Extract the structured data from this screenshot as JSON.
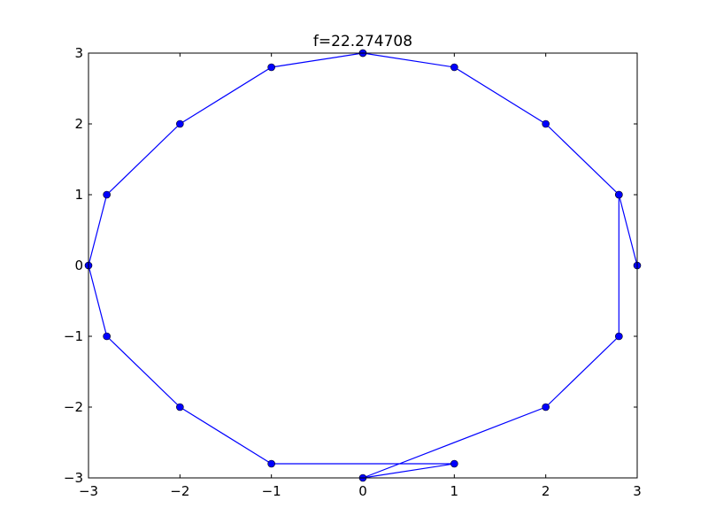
{
  "chart_data": {
    "type": "line",
    "title": "f=22.274708",
    "xlabel": "",
    "ylabel": "",
    "xlim": [
      -3,
      3
    ],
    "ylim": [
      -3,
      3
    ],
    "xticks": [
      -3,
      -2,
      -1,
      0,
      1,
      2,
      3
    ],
    "yticks": [
      -3,
      -2,
      -1,
      0,
      1,
      2,
      3
    ],
    "grid": false,
    "marker": "circle",
    "color": "#0000ff",
    "series": [
      {
        "x": [
          0,
          1,
          2,
          2.8,
          3,
          2.8,
          2.8,
          2,
          0,
          1,
          -1,
          -2,
          -2.8,
          -3,
          -2.8,
          -2,
          -1,
          0
        ],
        "y": [
          3,
          2.8,
          2,
          1,
          0,
          1,
          -1,
          -2,
          -3,
          -2.8,
          -2.8,
          -2,
          -1,
          0,
          1,
          2,
          2.8,
          3
        ]
      }
    ]
  }
}
